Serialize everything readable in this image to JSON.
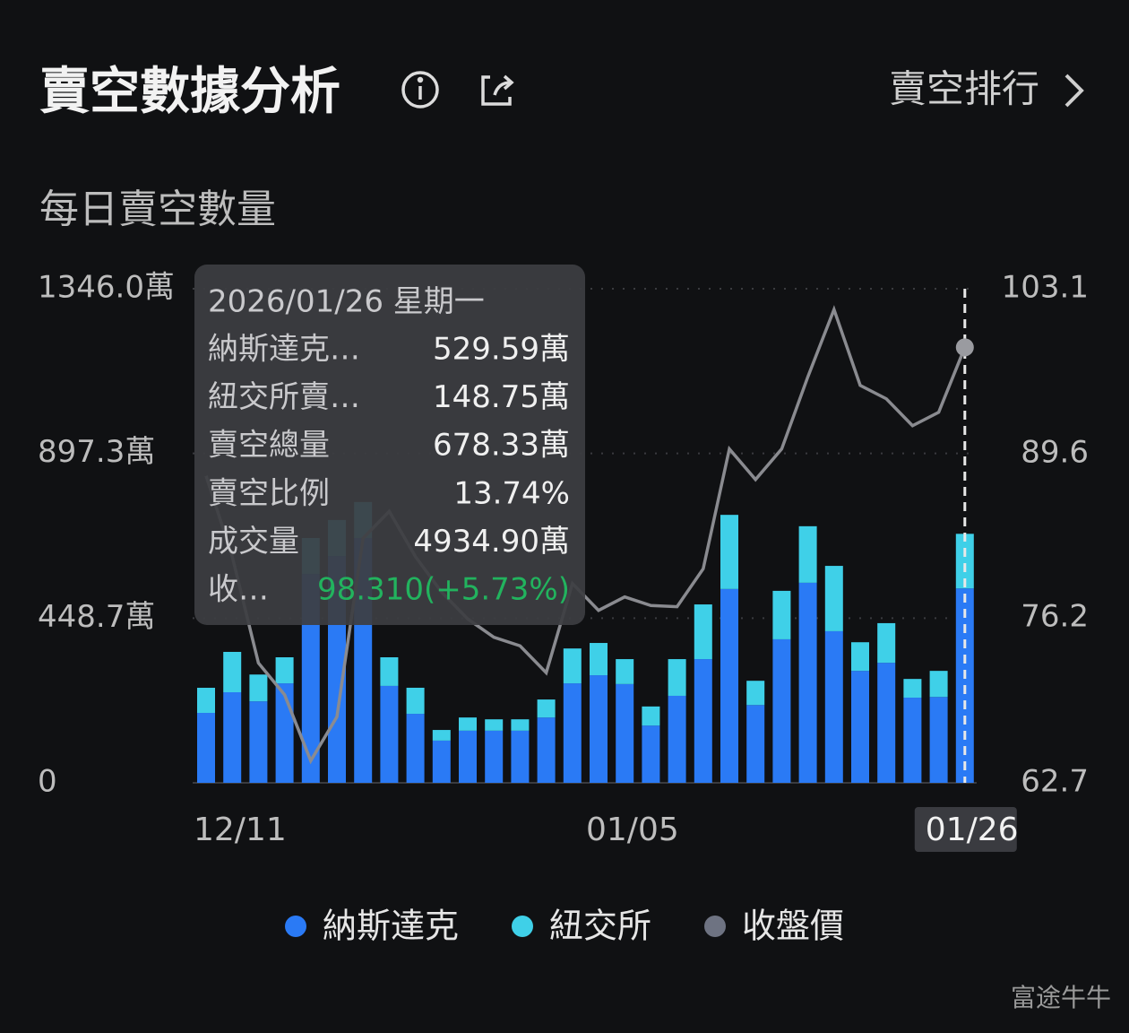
{
  "header": {
    "title": "賣空數據分析",
    "link": "賣空排行"
  },
  "section_title": "每日賣空數量",
  "chart_data": {
    "type": "stacked-bar-line",
    "categories": [
      "12/11",
      null,
      null,
      null,
      null,
      null,
      null,
      null,
      null,
      null,
      null,
      null,
      null,
      null,
      null,
      "01/05",
      null,
      null,
      null,
      null,
      null,
      null,
      null,
      null,
      null,
      null,
      null,
      null,
      null,
      "01/26"
    ],
    "series": [
      {
        "name": "納斯達克",
        "color": "#2a7af5",
        "values": [
          190.5,
          246.7,
          222,
          271,
          569,
          618,
          667,
          264,
          188,
          115,
          142,
          142,
          142,
          178,
          271,
          293,
          269,
          156,
          237,
          337,
          528,
          212,
          391,
          545,
          413,
          305,
          327,
          232,
          234,
          529.59
        ]
      },
      {
        "name": "紐交所",
        "color": "#3fd0e8",
        "values": [
          68.4,
          110,
          73,
          71,
          98,
          98,
          98,
          78,
          71,
          29,
          36,
          31,
          31,
          49,
          95,
          88,
          68,
          52,
          100,
          149,
          202,
          66,
          132,
          154,
          178,
          78,
          108,
          51,
          71,
          148.75
        ]
      },
      {
        "name": "收盤價",
        "color": "#8a8b90",
        "axis": "y2",
        "values": [
          87.8,
          81.2,
          72.5,
          69.9,
          64.5,
          68.1,
          82.7,
          84.9,
          81.2,
          78.3,
          76.1,
          74.6,
          73.9,
          71.7,
          79.0,
          76.8,
          77.9,
          77.2,
          77.1,
          80.2,
          90.0,
          87.5,
          90.0,
          95.9,
          101.4,
          95.2,
          94.1,
          91.9,
          93.0,
          98.31
        ]
      }
    ],
    "ylim": [
      0,
      1346.0
    ],
    "yticks": [
      0,
      {
        "value": 448.7,
        "label": "448.7萬"
      },
      {
        "value": 897.3,
        "label": "897.3萬"
      },
      {
        "value": 1346.0,
        "label": "1346.0萬"
      }
    ],
    "y2lim": [
      62.7,
      103.1
    ],
    "y2ticks": [
      62.7,
      76.2,
      89.6,
      103.1
    ],
    "grid": true
  },
  "tooltip": {
    "date": "2026/01/26 星期一",
    "rows": [
      [
        "納斯達克…",
        "529.59萬"
      ],
      [
        "紐交所賣…",
        "148.75萬"
      ],
      [
        "賣空總量",
        "678.33萬"
      ],
      [
        "賣空比例",
        "13.74%"
      ],
      [
        "成交量",
        "4934.90萬"
      ],
      [
        "收…",
        "98.310(+5.73%)"
      ]
    ]
  },
  "watermark": "富途牛牛"
}
